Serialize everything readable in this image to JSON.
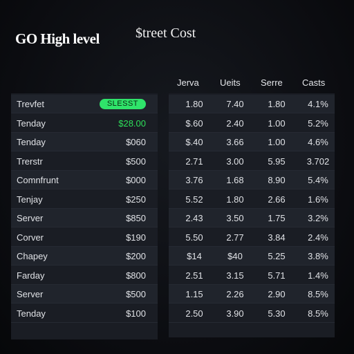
{
  "header": {
    "title": "GO High level",
    "subtitle": "$treet Cost"
  },
  "columns": [
    "Jerva",
    "Ueits",
    "Serre",
    "Casts"
  ],
  "rows": [
    {
      "name": "Trevfet",
      "value": "SLESST",
      "badge": true,
      "cells": [
        "1.80",
        "7.40",
        "1.80",
        "4.1%"
      ]
    },
    {
      "name": "Tenday",
      "value": "$28.00",
      "green": true,
      "cells": [
        "$.60",
        "2.40",
        "1.00",
        "5.2%"
      ]
    },
    {
      "name": "Tenday",
      "value": "$060",
      "cells": [
        "$.40",
        "3.66",
        "1.00",
        "4.6%"
      ]
    },
    {
      "name": "Trerstr",
      "value": "$500",
      "cells": [
        "2.71",
        "3.00",
        "5.95",
        "3.702"
      ]
    },
    {
      "name": "Comnfrunt",
      "value": "$000",
      "cells": [
        "3.76",
        "1.68",
        "8.90",
        "5.4%"
      ]
    },
    {
      "name": "Tenjay",
      "value": "$250",
      "cells": [
        "5.52",
        "1.80",
        "2.66",
        "1.6%"
      ]
    },
    {
      "name": "Server",
      "value": "$850",
      "cells": [
        "2.43",
        "3.50",
        "1.75",
        "3.2%"
      ]
    },
    {
      "name": "Corver",
      "value": "$190",
      "cells": [
        "5.50",
        "2.77",
        "3.84",
        "2.4%"
      ]
    },
    {
      "name": "Chapey",
      "value": "$200",
      "cells": [
        "$14",
        "$40",
        "5.25",
        "3.8%"
      ]
    },
    {
      "name": "Farday",
      "value": "$800",
      "cells": [
        "2.51",
        "3.15",
        "5.71",
        "1.4%"
      ]
    },
    {
      "name": "Server",
      "value": "$500",
      "cells": [
        "1.15",
        "2.26",
        "2.90",
        "8.5%"
      ]
    },
    {
      "name": "Tenday",
      "value": "$100",
      "cells": [
        "2.50",
        "3.90",
        "5.30",
        "8.5%"
      ]
    }
  ],
  "colors": {
    "accent_green": "#2fe36a",
    "panel": "#1a1d24",
    "background": "#0b0c10"
  }
}
